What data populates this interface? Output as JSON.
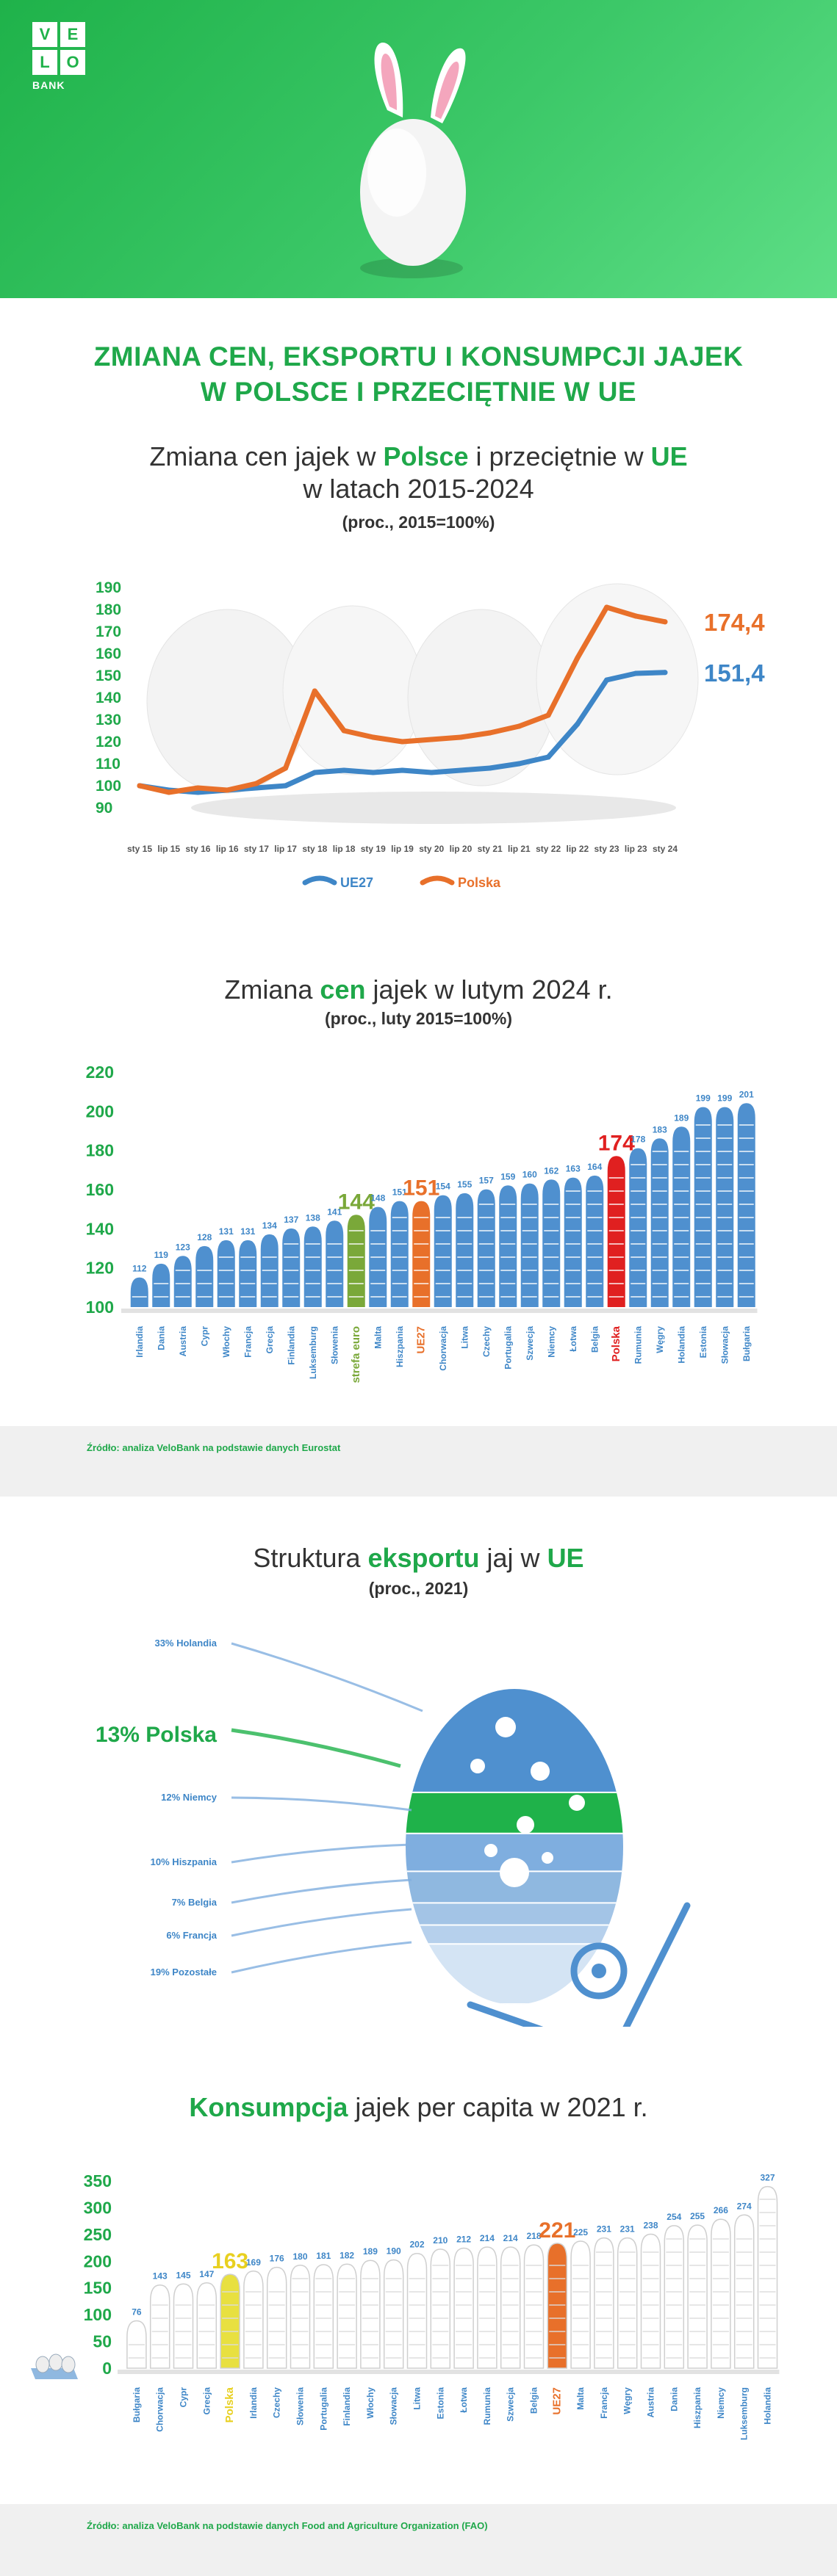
{
  "brand": {
    "logo_letters": [
      "V",
      "E",
      "L",
      "O"
    ],
    "logo_sub": "BANK"
  },
  "main_title": {
    "line1": "ZMIANA CEN, EKSPORTU I KONSUMPCJI JAJEK",
    "line2": "W POLSCE I PRZECIĘTNIE W UE"
  },
  "colors": {
    "green": "#1fa84a",
    "orange": "#e8702a",
    "blue": "#3e86c7",
    "red": "#e02020",
    "olive": "#7aa839"
  },
  "chart1": {
    "title_a": "Zmiana cen jajek w ",
    "title_polska": "Polsce",
    "title_b": " i przeciętnie w ",
    "title_ue": "UE",
    "title_line2": "w latach 2015-2024",
    "subtitle": "(proc., 2015=100%)"
  },
  "chart2": {
    "title_a": "Zmiana ",
    "title_cen": "cen",
    "title_b": " jajek w lutym 2024 r.",
    "subtitle": "(proc., luty 2015=100%)"
  },
  "source1": "Źródło: analiza VeloBank na podstawie danych Eurostat",
  "chart3": {
    "title_a": "Struktura ",
    "title_exp": "eksportu",
    "title_b": " jaj w ",
    "title_ue": "UE",
    "subtitle": "(proc., 2021)"
  },
  "chart4": {
    "title_kon": "Konsumpcja",
    "title_b": " jajek per capita w 2021 r."
  },
  "source2": "Źródło: analiza VeloBank na podstawie danych Food and Agriculture Organization (FAO)",
  "chart_data": [
    {
      "type": "line",
      "x": [
        "sty 15",
        "lip 15",
        "sty 16",
        "lip 16",
        "sty 17",
        "lip 17",
        "sty 18",
        "lip 18",
        "sty 19",
        "lip 19",
        "sty 20",
        "lip 20",
        "sty 21",
        "lip 21",
        "sty 22",
        "lip 22",
        "sty 23",
        "lip 23",
        "sty 24"
      ],
      "ylim": [
        90,
        190
      ],
      "yticks": [
        90,
        100,
        110,
        120,
        130,
        140,
        150,
        160,
        170,
        180,
        190
      ],
      "series": [
        {
          "name": "UE27",
          "color": "#3e86c7",
          "values": [
            100,
            98,
            97,
            98,
            99,
            100,
            106,
            107,
            106,
            107,
            106,
            107,
            108,
            110,
            113,
            128,
            148,
            151,
            151.4
          ]
        },
        {
          "name": "Polska",
          "color": "#e8702a",
          "values": [
            100,
            97,
            99,
            98,
            101,
            108,
            143,
            125,
            122,
            120,
            121,
            122,
            124,
            127,
            132,
            158,
            181,
            177,
            174.4
          ]
        }
      ],
      "end_labels": [
        "174,4",
        "151,4"
      ]
    },
    {
      "type": "bar",
      "ylim": [
        100,
        220
      ],
      "yticks": [
        100,
        120,
        140,
        160,
        180,
        200,
        220
      ],
      "categories": [
        "Irlandia",
        "Dania",
        "Austria",
        "Cypr",
        "Włochy",
        "Francja",
        "Grecja",
        "Finlandia",
        "Luksemburg",
        "Słowenia",
        "strefa euro",
        "Malta",
        "Hiszpania",
        "UE27",
        "Chorwacja",
        "Litwa",
        "Czechy",
        "Portugalia",
        "Szwecja",
        "Niemcy",
        "Łotwa",
        "Belgia",
        "Polska",
        "Rumunia",
        "Węgry",
        "Holandia",
        "Estonia",
        "Słowacja",
        "Bułgaria"
      ],
      "values": [
        112,
        119,
        123,
        128,
        131,
        131,
        134,
        137,
        138,
        141,
        144,
        148,
        151,
        151,
        154,
        155,
        157,
        159,
        160,
        162,
        163,
        164,
        174,
        178,
        183,
        189,
        199,
        199,
        201
      ],
      "highlight": {
        "strefa euro": "#7aa839",
        "UE27": "#e8702a",
        "Polska": "#e02020"
      }
    },
    {
      "type": "pie",
      "labels": [
        "33% Holandia",
        "13% Polska",
        "12% Niemcy",
        "10% Hiszpania",
        "7% Belgia",
        "6% Francja",
        "19% Pozostałe"
      ],
      "values": [
        33,
        13,
        12,
        10,
        7,
        6,
        19
      ]
    },
    {
      "type": "bar",
      "ylim": [
        0,
        350
      ],
      "yticks": [
        0,
        50,
        100,
        150,
        200,
        250,
        300,
        350
      ],
      "categories": [
        "Bułgaria",
        "Chorwacja",
        "Cypr",
        "Grecja",
        "Polska",
        "Irlandia",
        "Czechy",
        "Słowenia",
        "Portugalia",
        "Finlandia",
        "Włochy",
        "Słowacja",
        "Litwa",
        "Estonia",
        "Łotwa",
        "Rumunia",
        "Szwecja",
        "Belgia",
        "UE27",
        "Malta",
        "Francja",
        "Węgry",
        "Austria",
        "Dania",
        "Hiszpania",
        "Niemcy",
        "Luksemburg",
        "Holandia"
      ],
      "values": [
        76,
        143,
        145,
        147,
        163,
        169,
        176,
        180,
        181,
        182,
        189,
        190,
        202,
        210,
        212,
        214,
        214,
        218,
        221,
        225,
        231,
        231,
        238,
        254,
        255,
        266,
        274,
        327
      ],
      "highlight": {
        "Polska": "#e8e040",
        "UE27": "#e8702a"
      }
    }
  ]
}
